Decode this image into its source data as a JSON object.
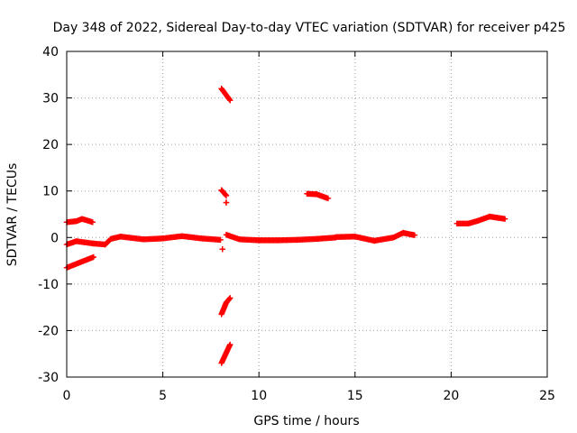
{
  "chart_data": {
    "type": "scatter",
    "title": "Day 348 of 2022, Sidereal Day-to-day VTEC variation (SDTVAR) for receiver p425",
    "xlabel": "GPS time / hours",
    "ylabel": "SDTVAR / TECUs",
    "xlim": [
      0,
      25
    ],
    "ylim": [
      -30,
      40
    ],
    "x_ticks": [
      0,
      5,
      10,
      15,
      20,
      25
    ],
    "y_ticks": [
      -30,
      -20,
      -10,
      0,
      10,
      20,
      30,
      40
    ],
    "grid": true,
    "marker": "plus",
    "color": "#ff0000",
    "segments": [
      {
        "from": [
          0.0,
          3.3
        ],
        "to": [
          0.5,
          3.5
        ]
      },
      {
        "from": [
          0.5,
          3.5
        ],
        "to": [
          0.8,
          4.0
        ]
      },
      {
        "from": [
          0.8,
          4.0
        ],
        "to": [
          1.35,
          3.3
        ]
      },
      {
        "from": [
          0.0,
          -1.5
        ],
        "to": [
          0.5,
          -0.8
        ]
      },
      {
        "from": [
          0.5,
          -0.8
        ],
        "to": [
          1.4,
          -1.3
        ]
      },
      {
        "from": [
          1.4,
          -1.3
        ],
        "to": [
          2.0,
          -1.5
        ]
      },
      {
        "from": [
          0.0,
          -6.5
        ],
        "to": [
          0.6,
          -5.5
        ]
      },
      {
        "from": [
          0.6,
          -5.5
        ],
        "to": [
          1.4,
          -4.2
        ]
      },
      {
        "from": [
          2.0,
          -1.5
        ],
        "to": [
          2.3,
          -0.3
        ]
      },
      {
        "from": [
          2.3,
          -0.3
        ],
        "to": [
          2.8,
          0.2
        ]
      },
      {
        "from": [
          2.8,
          0.2
        ],
        "to": [
          4.0,
          -0.4
        ]
      },
      {
        "from": [
          4.0,
          -0.4
        ],
        "to": [
          5.0,
          -0.2
        ]
      },
      {
        "from": [
          5.0,
          -0.2
        ],
        "to": [
          6.0,
          0.3
        ]
      },
      {
        "from": [
          6.0,
          0.3
        ],
        "to": [
          7.0,
          -0.2
        ]
      },
      {
        "from": [
          7.0,
          -0.2
        ],
        "to": [
          8.0,
          -0.5
        ]
      },
      {
        "from": [
          8.05,
          32.0
        ],
        "to": [
          8.5,
          29.5
        ]
      },
      {
        "from": [
          8.05,
          10.2
        ],
        "to": [
          8.3,
          9.0
        ]
      },
      {
        "from": [
          8.3,
          7.5
        ],
        "to": [
          8.3,
          7.5
        ]
      },
      {
        "from": [
          8.05,
          -16.5
        ],
        "to": [
          8.3,
          -14.0
        ]
      },
      {
        "from": [
          8.3,
          -14.0
        ],
        "to": [
          8.5,
          -13.0
        ]
      },
      {
        "from": [
          8.05,
          -27.0
        ],
        "to": [
          8.5,
          -23.0
        ]
      },
      {
        "from": [
          8.1,
          -2.5
        ],
        "to": [
          8.1,
          -2.5
        ]
      },
      {
        "from": [
          8.3,
          0.6
        ],
        "to": [
          8.5,
          0.3
        ]
      },
      {
        "from": [
          8.5,
          0.3
        ],
        "to": [
          9.0,
          -0.4
        ]
      },
      {
        "from": [
          9.0,
          -0.4
        ],
        "to": [
          10.0,
          -0.6
        ]
      },
      {
        "from": [
          10.0,
          -0.6
        ],
        "to": [
          11.0,
          -0.6
        ]
      },
      {
        "from": [
          11.0,
          -0.6
        ],
        "to": [
          12.0,
          -0.5
        ]
      },
      {
        "from": [
          12.0,
          -0.5
        ],
        "to": [
          13.0,
          -0.3
        ]
      },
      {
        "from": [
          13.0,
          -0.3
        ],
        "to": [
          14.0,
          0.0
        ]
      },
      {
        "from": [
          12.5,
          9.4
        ],
        "to": [
          13.0,
          9.3
        ]
      },
      {
        "from": [
          13.0,
          9.3
        ],
        "to": [
          13.6,
          8.4
        ]
      },
      {
        "from": [
          14.0,
          0.1
        ],
        "to": [
          15.0,
          0.2
        ]
      },
      {
        "from": [
          15.0,
          0.2
        ],
        "to": [
          16.0,
          -0.7
        ]
      },
      {
        "from": [
          16.0,
          -0.7
        ],
        "to": [
          17.0,
          0.0
        ]
      },
      {
        "from": [
          17.0,
          0.0
        ],
        "to": [
          17.5,
          1.0
        ]
      },
      {
        "from": [
          17.5,
          1.0
        ],
        "to": [
          18.1,
          0.5
        ]
      },
      {
        "from": [
          20.3,
          3.0
        ],
        "to": [
          20.9,
          3.0
        ]
      },
      {
        "from": [
          20.9,
          3.0
        ],
        "to": [
          21.4,
          3.6
        ]
      },
      {
        "from": [
          21.4,
          3.6
        ],
        "to": [
          22.0,
          4.5
        ]
      },
      {
        "from": [
          22.0,
          4.5
        ],
        "to": [
          22.8,
          4.0
        ]
      }
    ]
  }
}
